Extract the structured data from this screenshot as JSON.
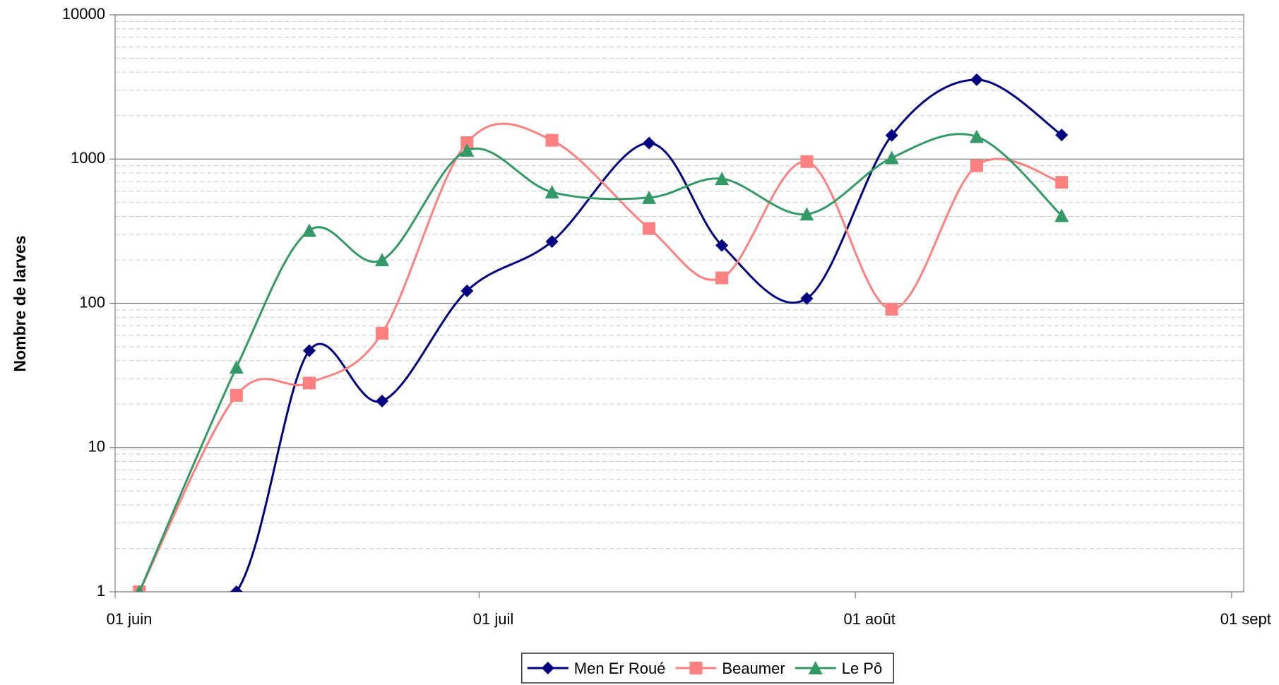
{
  "chart_data": {
    "type": "line",
    "y_label": "Nombre de larves",
    "x": [
      2,
      10,
      16,
      22,
      29,
      36,
      44,
      50,
      57,
      64,
      71,
      78
    ],
    "xlim": [
      0,
      93
    ],
    "xticks": [
      {
        "value": 0,
        "label": "01 juin"
      },
      {
        "value": 30,
        "label": "01 juil"
      },
      {
        "value": 61,
        "label": "01 août"
      },
      {
        "value": 92,
        "label": "01 sept"
      }
    ],
    "ylim": [
      1,
      10000
    ],
    "yticks": [
      1,
      10,
      100,
      1000,
      10000
    ],
    "log_y": true,
    "grid": true,
    "minor_grid": true,
    "smooth": true,
    "legend": "bottom",
    "series": [
      {
        "name": "Men Er Roué",
        "color": "#000080",
        "marker": "diamond",
        "values": [
          1,
          1,
          47,
          21,
          122,
          268,
          1290,
          252,
          108,
          1460,
          3550,
          1470
        ]
      },
      {
        "name": "Beaumer",
        "color": "#ff8080",
        "marker": "square",
        "values": [
          1,
          23,
          28,
          62,
          1300,
          1350,
          330,
          150,
          960,
          91,
          900,
          690
        ]
      },
      {
        "name": "Le Pô",
        "color": "#339966",
        "marker": "triangle",
        "values": [
          1,
          36,
          320,
          200,
          1150,
          590,
          540,
          730,
          415,
          1020,
          1430,
          405
        ]
      }
    ]
  }
}
